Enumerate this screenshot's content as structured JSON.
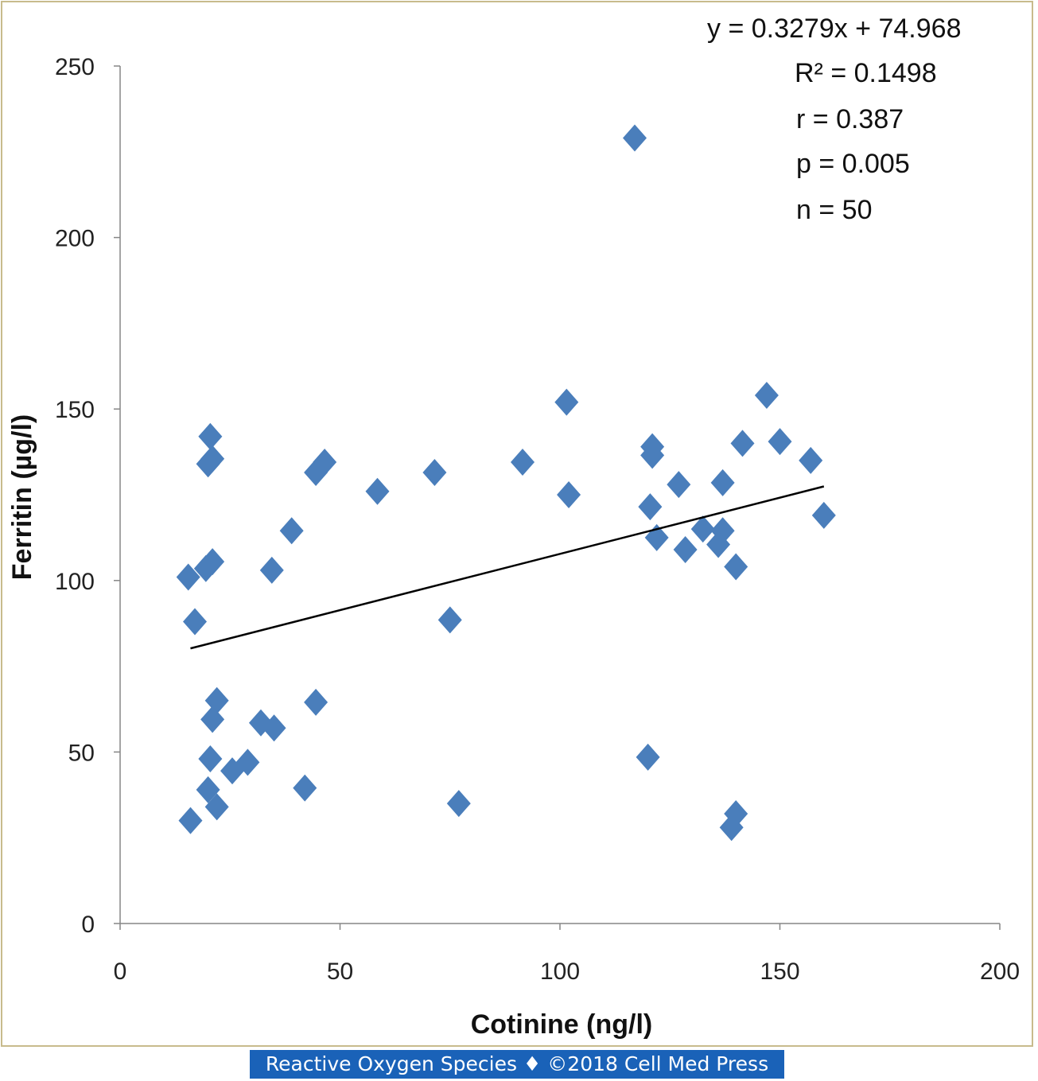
{
  "chart_data": {
    "type": "scatter",
    "xlabel": "Cotinine (ng/l)",
    "ylabel": "Ferritin (µg/l)",
    "xlim": [
      0,
      200
    ],
    "ylim": [
      0,
      250
    ],
    "x_ticks": [
      "0",
      "50",
      "100",
      "150",
      "200"
    ],
    "y_ticks": [
      "0",
      "50",
      "100",
      "150",
      "200",
      "250"
    ],
    "grid": false,
    "marker": "diamond",
    "marker_color": "#4a7ebb",
    "trendline": {
      "slope": 0.3279,
      "intercept": 74.968,
      "x_range": [
        16,
        160
      ],
      "color": "#000000"
    },
    "annotations": [
      "y = 0.3279x + 74.968",
      "R² = 0.1498",
      "r = 0.387",
      "p = 0.005",
      "n = 50"
    ],
    "points": [
      [
        117,
        229
      ],
      [
        101.5,
        152
      ],
      [
        147,
        154
      ],
      [
        20.5,
        142
      ],
      [
        121,
        139
      ],
      [
        141.5,
        140
      ],
      [
        150,
        140.5
      ],
      [
        121,
        136.5
      ],
      [
        21,
        135.5
      ],
      [
        20,
        134
      ],
      [
        46.5,
        134.5
      ],
      [
        44.5,
        131.5
      ],
      [
        71.5,
        131.5
      ],
      [
        91.5,
        134.5
      ],
      [
        157,
        135
      ],
      [
        58.5,
        126
      ],
      [
        102,
        125
      ],
      [
        127,
        128
      ],
      [
        137,
        128.5
      ],
      [
        120.5,
        121.5
      ],
      [
        160,
        119
      ],
      [
        39,
        114.5
      ],
      [
        132.5,
        115
      ],
      [
        137,
        114.5
      ],
      [
        122,
        112.5
      ],
      [
        136,
        110.5
      ],
      [
        128.5,
        109
      ],
      [
        140,
        104
      ],
      [
        21,
        105.5
      ],
      [
        19.5,
        103.5
      ],
      [
        34.5,
        103
      ],
      [
        15.5,
        101
      ],
      [
        17,
        88
      ],
      [
        75,
        88.5
      ],
      [
        22,
        65
      ],
      [
        44.5,
        64.5
      ],
      [
        21,
        59.5
      ],
      [
        32,
        58.5
      ],
      [
        35,
        57
      ],
      [
        29,
        47
      ],
      [
        20.5,
        48
      ],
      [
        25.5,
        44.5
      ],
      [
        120,
        48.5
      ],
      [
        20,
        39
      ],
      [
        42,
        39.5
      ],
      [
        22,
        34
      ],
      [
        77,
        35
      ],
      [
        140,
        32
      ],
      [
        139,
        28
      ],
      [
        16,
        30
      ]
    ]
  },
  "footer": {
    "text": "Reactive Oxygen Species ♦ ©2018 Cell Med Press"
  }
}
